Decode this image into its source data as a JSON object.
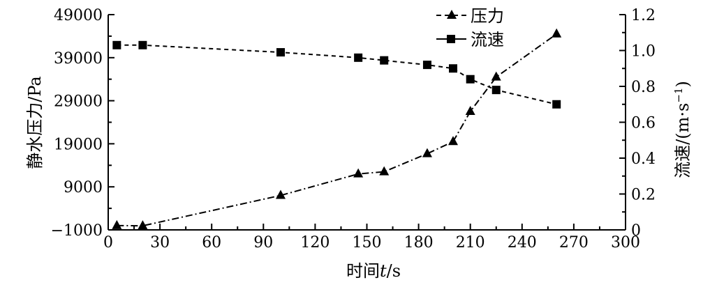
{
  "chart_data": {
    "type": "line",
    "title": "",
    "xlabel": {
      "prefix": "时间",
      "var": "t",
      "unit": "/s"
    },
    "ylabel_left": "静水压力/Pa",
    "ylabel_right": {
      "text": "流速/(m·s",
      "sup": "−1",
      "close": ")"
    },
    "xlim": [
      0,
      300
    ],
    "ylim_left": [
      -1000,
      49000
    ],
    "ylim_right": [
      0,
      1.2
    ],
    "x_ticks": [
      "0",
      "30",
      "60",
      "90",
      "120",
      "150",
      "180",
      "210",
      "240",
      "270",
      "300"
    ],
    "y_left_ticks": [
      "−1000",
      "9000",
      "19000",
      "29000",
      "39000",
      "49000"
    ],
    "y_right_ticks": [
      "0",
      "0.2",
      "0.4",
      "0.6",
      "0.8",
      "1.0",
      "1.2"
    ],
    "grid": false,
    "legend_position": "top-right",
    "series": [
      {
        "name": "压力",
        "axis": "left",
        "marker": "triangle",
        "line_style": "dash-dot",
        "x": [
          5,
          20,
          100,
          145,
          160,
          185,
          200,
          210,
          225,
          260
        ],
        "y": [
          0,
          -50,
          7000,
          12000,
          12500,
          16700,
          19500,
          26500,
          34500,
          44500
        ]
      },
      {
        "name": "流速",
        "axis": "right",
        "marker": "square",
        "line_style": "dashed",
        "x": [
          5,
          20,
          100,
          145,
          160,
          185,
          200,
          210,
          225,
          260
        ],
        "y": [
          1.03,
          1.03,
          0.99,
          0.96,
          0.945,
          0.92,
          0.9,
          0.84,
          0.78,
          0.7
        ]
      }
    ]
  }
}
